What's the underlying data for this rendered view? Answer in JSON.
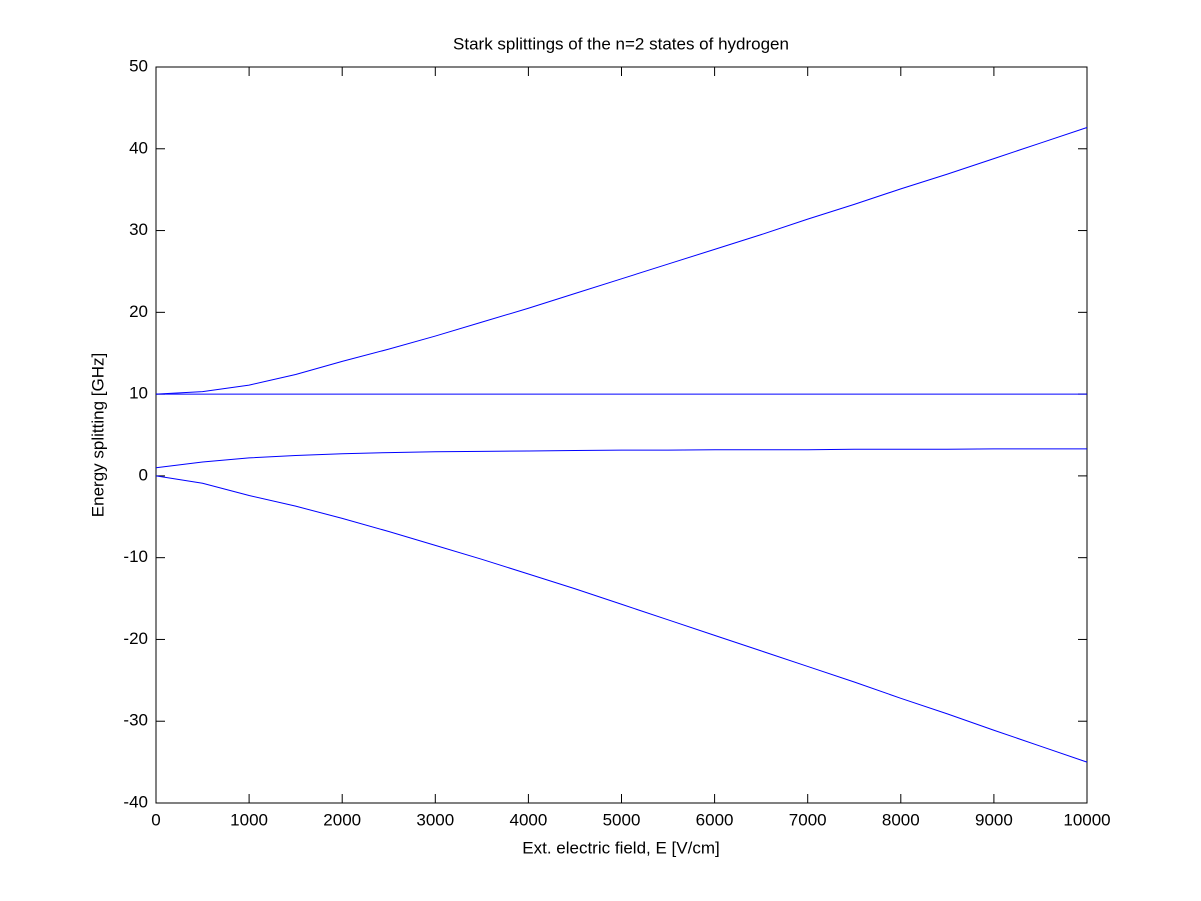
{
  "chart_data": {
    "type": "line",
    "title": "Stark splittings of the n=2 states of hydrogen",
    "x_label": "Ext. electric field, E [V/cm]",
    "y_label": "Energy splitting [GHz]",
    "x": [
      0,
      500,
      1000,
      1500,
      2000,
      2500,
      3000,
      3500,
      4000,
      4500,
      5000,
      5500,
      6000,
      6500,
      7000,
      7500,
      8000,
      8500,
      9000,
      9500,
      10000
    ],
    "series": [
      {
        "color": "#0000ff",
        "values": [
          10,
          10.3,
          11.1,
          12.4,
          14.0,
          15.5,
          17.1,
          18.8,
          20.5,
          22.3,
          24.1,
          25.9,
          27.7,
          29.5,
          31.4,
          33.2,
          35.1,
          36.9,
          38.8,
          40.7,
          42.6
        ]
      },
      {
        "color": "#0000ff",
        "values": [
          10,
          10,
          10,
          10,
          10,
          10,
          10,
          10,
          10,
          10,
          10,
          10,
          10,
          10,
          10,
          10,
          10,
          10,
          10,
          10,
          10
        ]
      },
      {
        "color": "#0000ff",
        "values": [
          1,
          1.7,
          2.2,
          2.5,
          2.7,
          2.85,
          2.95,
          3.0,
          3.05,
          3.1,
          3.15,
          3.15,
          3.2,
          3.2,
          3.2,
          3.25,
          3.25,
          3.25,
          3.3,
          3.3,
          3.3
        ]
      },
      {
        "color": "#0000ff",
        "values": [
          0,
          -0.9,
          -2.4,
          -3.7,
          -5.2,
          -6.8,
          -8.5,
          -10.2,
          -12.0,
          -13.8,
          -15.7,
          -17.6,
          -19.5,
          -21.4,
          -23.3,
          -25.2,
          -27.2,
          -29.1,
          -31.1,
          -33.05,
          -35
        ]
      }
    ],
    "xlim": [
      0,
      10000
    ],
    "xticks": [
      0,
      1000,
      2000,
      3000,
      4000,
      5000,
      6000,
      7000,
      8000,
      9000,
      10000
    ],
    "ylim": [
      -40,
      50
    ],
    "yticks": [
      -40,
      -30,
      -20,
      -10,
      0,
      10,
      20,
      30,
      40,
      50
    ],
    "grid": false
  }
}
